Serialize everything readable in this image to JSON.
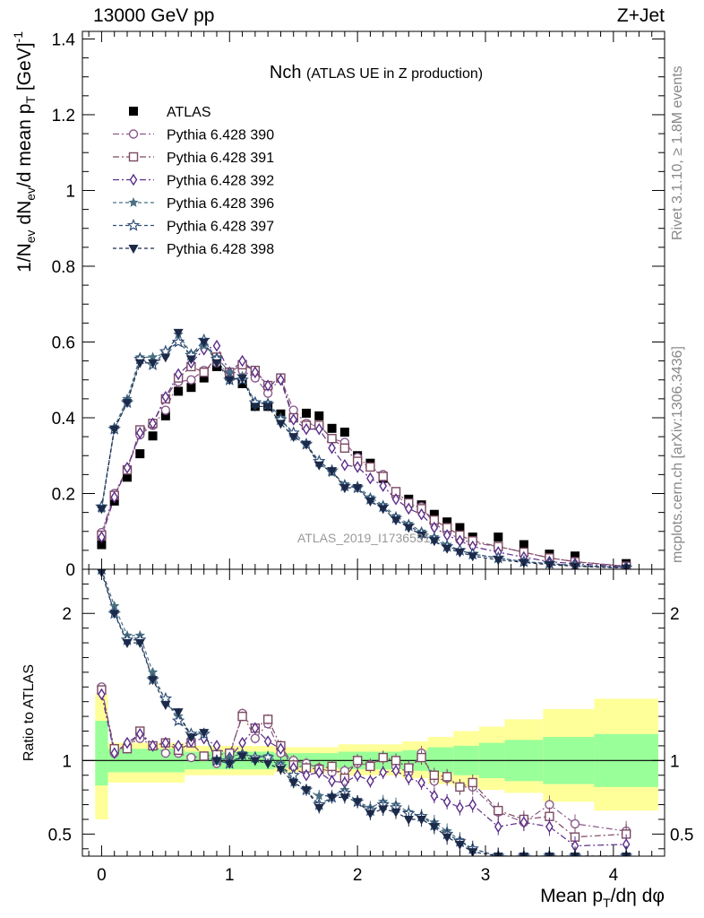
{
  "header": {
    "left": "13000 GeV pp",
    "right": "Z+Jet"
  },
  "side_labels": {
    "rivet": "Rivet 3.1.10, ≥ 1.8M events",
    "mcplots": "mcplots.cern.ch [arXiv:1306.3436]"
  },
  "chart_data": [
    {
      "type": "scatter",
      "title": "Nch",
      "subtitle": "(ATLAS UE in Z production)",
      "watermark": "ATLAS_2019_I1736531",
      "xlabel": "Mean p_T/dη dφ",
      "ylabel": "1/N_ev dN_ev/d mean p_T [GeV]^-1",
      "xlim": [
        -0.15,
        4.4
      ],
      "ylim": [
        0,
        1.42
      ],
      "x_ticks": [
        "0",
        "1",
        "2",
        "3",
        "4"
      ],
      "y_ticks": [
        "0",
        "0.2",
        "0.4",
        "0.6",
        "0.8",
        "1",
        "1.2",
        "1.4"
      ],
      "x": [
        0.0,
        0.1,
        0.2,
        0.3,
        0.4,
        0.5,
        0.6,
        0.7,
        0.8,
        0.9,
        1.0,
        1.1,
        1.2,
        1.3,
        1.4,
        1.5,
        1.6,
        1.7,
        1.8,
        1.9,
        2.0,
        2.1,
        2.2,
        2.3,
        2.4,
        2.5,
        2.6,
        2.7,
        2.8,
        2.9,
        3.1,
        3.3,
        3.5,
        3.7,
        4.1
      ],
      "legend_position": "top-left",
      "series": [
        {
          "name": "ATLAS",
          "color": "#000000",
          "marker": "square",
          "dash": "none",
          "values": [
            0.065,
            0.18,
            0.243,
            0.305,
            0.352,
            0.405,
            0.47,
            0.48,
            0.505,
            0.535,
            0.51,
            0.49,
            0.43,
            0.43,
            0.41,
            0.4,
            0.412,
            0.405,
            0.372,
            0.362,
            0.3,
            0.28,
            0.24,
            0.2,
            0.185,
            0.17,
            0.145,
            0.125,
            0.11,
            0.085,
            0.085,
            0.065,
            0.04,
            0.035,
            0.015
          ]
        },
        {
          "name": "Pythia 6.428 390",
          "color": "#8a5a8a",
          "marker": "circle",
          "dash": "7 3 2 3",
          "values": [
            0.097,
            0.2,
            0.265,
            0.355,
            0.38,
            0.42,
            0.495,
            0.5,
            0.525,
            0.545,
            0.515,
            0.525,
            0.505,
            0.465,
            0.505,
            0.42,
            0.385,
            0.38,
            0.345,
            0.335,
            0.295,
            0.27,
            0.25,
            0.195,
            0.17,
            0.165,
            0.12,
            0.1,
            0.078,
            0.07,
            0.06,
            0.045,
            0.03,
            0.02,
            0.008
          ]
        },
        {
          "name": "Pythia 6.428 391",
          "color": "#7a4a62",
          "marker": "square-open",
          "dash": "7 3 2 3",
          "values": [
            0.09,
            0.195,
            0.262,
            0.368,
            0.385,
            0.45,
            0.505,
            0.535,
            0.52,
            0.56,
            0.52,
            0.54,
            0.525,
            0.485,
            0.505,
            0.4,
            0.38,
            0.38,
            0.345,
            0.32,
            0.285,
            0.27,
            0.245,
            0.205,
            0.175,
            0.16,
            0.13,
            0.11,
            0.09,
            0.075,
            0.06,
            0.045,
            0.03,
            0.02,
            0.008
          ]
        },
        {
          "name": "Pythia 6.428 392",
          "color": "#5b2d8a",
          "marker": "diamond-open",
          "dash": "7 3 2 3",
          "values": [
            0.085,
            0.19,
            0.268,
            0.36,
            0.385,
            0.455,
            0.515,
            0.545,
            0.58,
            0.59,
            0.52,
            0.55,
            0.52,
            0.485,
            0.5,
            0.395,
            0.37,
            0.37,
            0.32,
            0.275,
            0.27,
            0.24,
            0.22,
            0.185,
            0.16,
            0.145,
            0.11,
            0.09,
            0.075,
            0.06,
            0.045,
            0.032,
            0.02,
            0.015,
            0.006
          ]
        },
        {
          "name": "Pythia 6.428 396",
          "color": "#4a7082",
          "marker": "star",
          "dash": "4 3",
          "values": [
            0.16,
            0.375,
            0.45,
            0.56,
            0.56,
            0.57,
            0.62,
            0.57,
            0.59,
            0.56,
            0.52,
            0.51,
            0.44,
            0.44,
            0.4,
            0.35,
            0.33,
            0.28,
            0.255,
            0.225,
            0.22,
            0.19,
            0.17,
            0.14,
            0.12,
            0.1,
            0.085,
            0.065,
            0.05,
            0.04,
            0.03,
            0.02,
            0.015,
            0.01,
            0.004
          ]
        },
        {
          "name": "Pythia 6.428 397",
          "color": "#2f4f78",
          "marker": "star-open",
          "dash": "4 3",
          "values": [
            0.165,
            0.37,
            0.44,
            0.555,
            0.54,
            0.575,
            0.6,
            0.565,
            0.605,
            0.555,
            0.5,
            0.5,
            0.44,
            0.435,
            0.395,
            0.36,
            0.33,
            0.285,
            0.26,
            0.22,
            0.215,
            0.185,
            0.165,
            0.135,
            0.115,
            0.095,
            0.08,
            0.06,
            0.05,
            0.04,
            0.03,
            0.02,
            0.015,
            0.01,
            0.004
          ]
        },
        {
          "name": "Pythia 6.428 398",
          "color": "#1c2a4a",
          "marker": "triangle-down",
          "dash": "4 3",
          "values": [
            0.16,
            0.37,
            0.44,
            0.545,
            0.545,
            0.56,
            0.625,
            0.555,
            0.6,
            0.545,
            0.5,
            0.505,
            0.43,
            0.43,
            0.385,
            0.35,
            0.33,
            0.275,
            0.26,
            0.215,
            0.215,
            0.18,
            0.16,
            0.13,
            0.11,
            0.09,
            0.075,
            0.055,
            0.045,
            0.035,
            0.025,
            0.018,
            0.012,
            0.008,
            0.003
          ]
        }
      ]
    },
    {
      "type": "scatter",
      "ylabel": "Ratio to ATLAS",
      "xlabel": "Mean p_T/dη dφ",
      "xlim": [
        -0.15,
        4.4
      ],
      "ylim": [
        0.35,
        2.3
      ],
      "y_ticks": [
        "0.5",
        "1",
        "2"
      ],
      "band_edges": [
        -0.05,
        0.05,
        0.65,
        1.35,
        1.85,
        2.35,
        2.55,
        2.75,
        2.95,
        3.15,
        3.45,
        3.85,
        4.35
      ],
      "band_inner": [
        [
          0.83,
          1.27
        ],
        [
          0.92,
          1.08
        ],
        [
          0.94,
          1.06
        ],
        [
          0.95,
          1.05
        ],
        [
          0.94,
          1.06
        ],
        [
          0.93,
          1.07
        ],
        [
          0.92,
          1.09
        ],
        [
          0.9,
          1.1
        ],
        [
          0.88,
          1.12
        ],
        [
          0.86,
          1.14
        ],
        [
          0.84,
          1.16
        ],
        [
          0.82,
          1.18
        ]
      ],
      "band_outer": [
        [
          0.6,
          1.45
        ],
        [
          0.85,
          1.12
        ],
        [
          0.9,
          1.1
        ],
        [
          0.92,
          1.09
        ],
        [
          0.9,
          1.11
        ],
        [
          0.88,
          1.13
        ],
        [
          0.84,
          1.16
        ],
        [
          0.82,
          1.2
        ],
        [
          0.8,
          1.23
        ],
        [
          0.78,
          1.28
        ],
        [
          0.72,
          1.35
        ],
        [
          0.66,
          1.42
        ]
      ],
      "x": [
        0.0,
        0.1,
        0.2,
        0.3,
        0.4,
        0.5,
        0.6,
        0.7,
        0.8,
        0.9,
        1.0,
        1.1,
        1.2,
        1.3,
        1.4,
        1.5,
        1.6,
        1.7,
        1.8,
        1.9,
        2.0,
        2.1,
        2.2,
        2.3,
        2.4,
        2.5,
        2.6,
        2.7,
        2.8,
        2.9,
        3.1,
        3.3,
        3.5,
        3.7,
        4.1
      ],
      "series": [
        {
          "name": "Pythia 6.428 390",
          "values": [
            1.5,
            1.05,
            1.1,
            1.15,
            1.1,
            1.05,
            1.05,
            1.02,
            1.03,
            0.98,
            1.03,
            1.32,
            1.15,
            1.25,
            1.05,
            1.0,
            0.98,
            0.95,
            0.92,
            0.93,
            0.98,
            0.97,
            1.02,
            0.96,
            0.92,
            1.05,
            0.86,
            0.88,
            0.82,
            0.82,
            0.65,
            0.58,
            0.7,
            0.57,
            0.52
          ]
        },
        {
          "name": "Pythia 6.428 391",
          "values": [
            1.48,
            1.08,
            1.08,
            1.2,
            1.1,
            1.12,
            1.07,
            1.12,
            1.03,
            1.04,
            1.05,
            1.3,
            1.22,
            1.28,
            1.1,
            0.97,
            0.95,
            0.94,
            0.96,
            0.88,
            1.0,
            0.96,
            1.02,
            1.0,
            0.95,
            1.02,
            0.9,
            0.89,
            0.82,
            0.85,
            0.66,
            0.6,
            0.62,
            0.48,
            0.5
          ]
        },
        {
          "name": "Pythia 6.428 392",
          "values": [
            1.45,
            1.05,
            1.12,
            1.18,
            1.1,
            1.12,
            1.1,
            1.13,
            1.15,
            1.1,
            1.02,
            1.12,
            1.22,
            1.13,
            1.08,
            0.95,
            0.9,
            0.92,
            0.86,
            0.85,
            0.9,
            0.86,
            0.92,
            0.93,
            0.88,
            0.85,
            0.76,
            0.72,
            0.68,
            0.7,
            0.55,
            0.58,
            0.55,
            0.42,
            0.43
          ]
        },
        {
          "name": "Pythia 6.428 396",
          "values": [
            2.3,
            2.05,
            1.85,
            1.85,
            1.6,
            1.4,
            1.3,
            1.18,
            1.18,
            1.0,
            1.02,
            1.05,
            1.02,
            1.03,
            0.98,
            0.85,
            0.8,
            0.76,
            0.76,
            0.8,
            0.72,
            0.68,
            0.72,
            0.7,
            0.65,
            0.62,
            0.58,
            0.52,
            0.46,
            0.4,
            0.35,
            0.35,
            0.35,
            0.35,
            0.35
          ]
        },
        {
          "name": "Pythia 6.428 397",
          "values": [
            2.3,
            2.0,
            1.82,
            1.82,
            1.55,
            1.42,
            1.27,
            1.18,
            1.18,
            1.0,
            0.98,
            1.04,
            1.02,
            1.02,
            0.96,
            0.9,
            0.8,
            0.7,
            0.75,
            0.78,
            0.72,
            0.66,
            0.7,
            0.68,
            0.64,
            0.62,
            0.56,
            0.5,
            0.45,
            0.4,
            0.35,
            0.35,
            0.35,
            0.35,
            0.35
          ]
        },
        {
          "name": "Pythia 6.428 398",
          "values": [
            2.28,
            2.0,
            1.8,
            1.8,
            1.55,
            1.38,
            1.33,
            1.16,
            1.19,
            1.0,
            0.98,
            1.03,
            1.0,
            0.98,
            0.94,
            0.85,
            0.8,
            0.68,
            0.75,
            0.75,
            0.72,
            0.64,
            0.67,
            0.65,
            0.6,
            0.6,
            0.55,
            0.48,
            0.43,
            0.38,
            0.35,
            0.35,
            0.35,
            0.35,
            0.35
          ]
        }
      ]
    }
  ]
}
